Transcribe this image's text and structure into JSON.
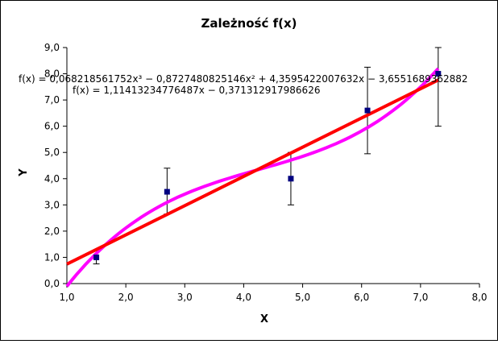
{
  "chart_data": {
    "type": "scatter",
    "title": "Zależność f(x)",
    "xlabel": "X",
    "ylabel": "Y",
    "xlim": [
      1.0,
      8.0
    ],
    "ylim": [
      0.0,
      9.0
    ],
    "x_ticks": [
      "1,0",
      "2,0",
      "3,0",
      "4,0",
      "5,0",
      "6,0",
      "7,0",
      "8,0"
    ],
    "y_ticks": [
      "0,0",
      "1,0",
      "2,0",
      "3,0",
      "4,0",
      "5,0",
      "6,0",
      "7,0",
      "8,0",
      "9,0"
    ],
    "grid": false,
    "points": [
      {
        "x": 1.5,
        "y": 1.0,
        "err_low": 0.25,
        "err_high": 0.25
      },
      {
        "x": 2.7,
        "y": 3.5,
        "err_low": 0.85,
        "err_high": 0.9
      },
      {
        "x": 4.8,
        "y": 4.0,
        "err_low": 1.0,
        "err_high": 1.0
      },
      {
        "x": 6.1,
        "y": 6.6,
        "err_low": 1.65,
        "err_high": 1.65
      },
      {
        "x": 7.3,
        "y": 8.0,
        "err_low": 2.0,
        "err_high": 1.0
      }
    ],
    "trendlines": [
      {
        "kind": "polynomial",
        "coefficients": [
          0.068218561752,
          -0.8727480825146,
          4.3595422007632,
          -3.6551689362882
        ],
        "color": "#ff00ff",
        "equation": "f(x) = 0,068218561752x³ − 0,8727480825146x² + 4,3595422007632x − 3,6551689362882"
      },
      {
        "kind": "linear",
        "coefficients": [
          1.11413234776487,
          -0.371312917986626
        ],
        "color": "#ff0000",
        "equation": "f(x) = 1,11413234776487x − 0,371312917986626"
      }
    ],
    "marker_color": "#000080"
  }
}
